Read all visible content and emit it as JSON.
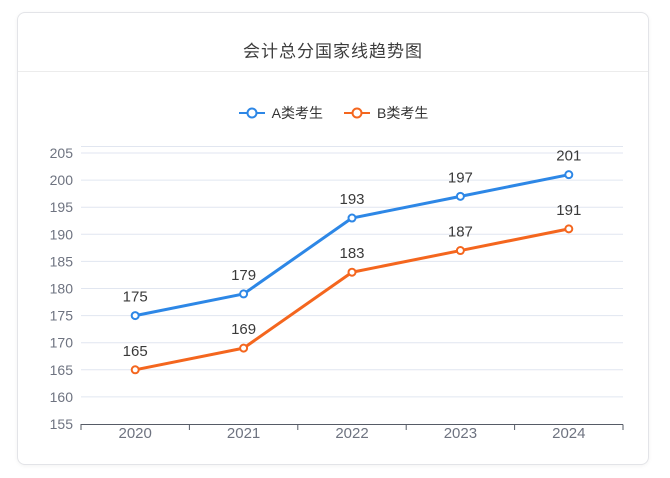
{
  "card": {
    "title": "会计总分国家线趋势图"
  },
  "legend": {
    "items": [
      {
        "label": "A类考生",
        "color": "#2d87e6"
      },
      {
        "label": "B类考生",
        "color": "#f4661e"
      }
    ]
  },
  "chart_data": {
    "type": "line",
    "title": "会计总分国家线趋势图",
    "categories": [
      "2020",
      "2021",
      "2022",
      "2023",
      "2024"
    ],
    "series": [
      {
        "name": "A类考生",
        "color": "#2d87e6",
        "values": [
          175,
          179,
          193,
          197,
          201
        ]
      },
      {
        "name": "B类考生",
        "color": "#f4661e",
        "values": [
          165,
          169,
          183,
          187,
          191
        ]
      }
    ],
    "xlabel": "",
    "ylabel": "",
    "ylim": [
      155,
      205
    ],
    "ytick_step": 5,
    "grid": true,
    "legend_position": "top",
    "point_style": "hollow-circle",
    "data_labels": true
  },
  "style": {
    "gridline_color": "#e1e6f0",
    "axis_line_color": "#565b66",
    "axis_label_color": "#6e7380",
    "data_label_color": "#3a3a3a",
    "title_color": "#3c3c3c",
    "legend_text_color": "#333333",
    "card_border_color": "#e3e4e8",
    "divider_color": "#ececec",
    "card_background": "#ffffff",
    "page_background": "#ffffff"
  }
}
